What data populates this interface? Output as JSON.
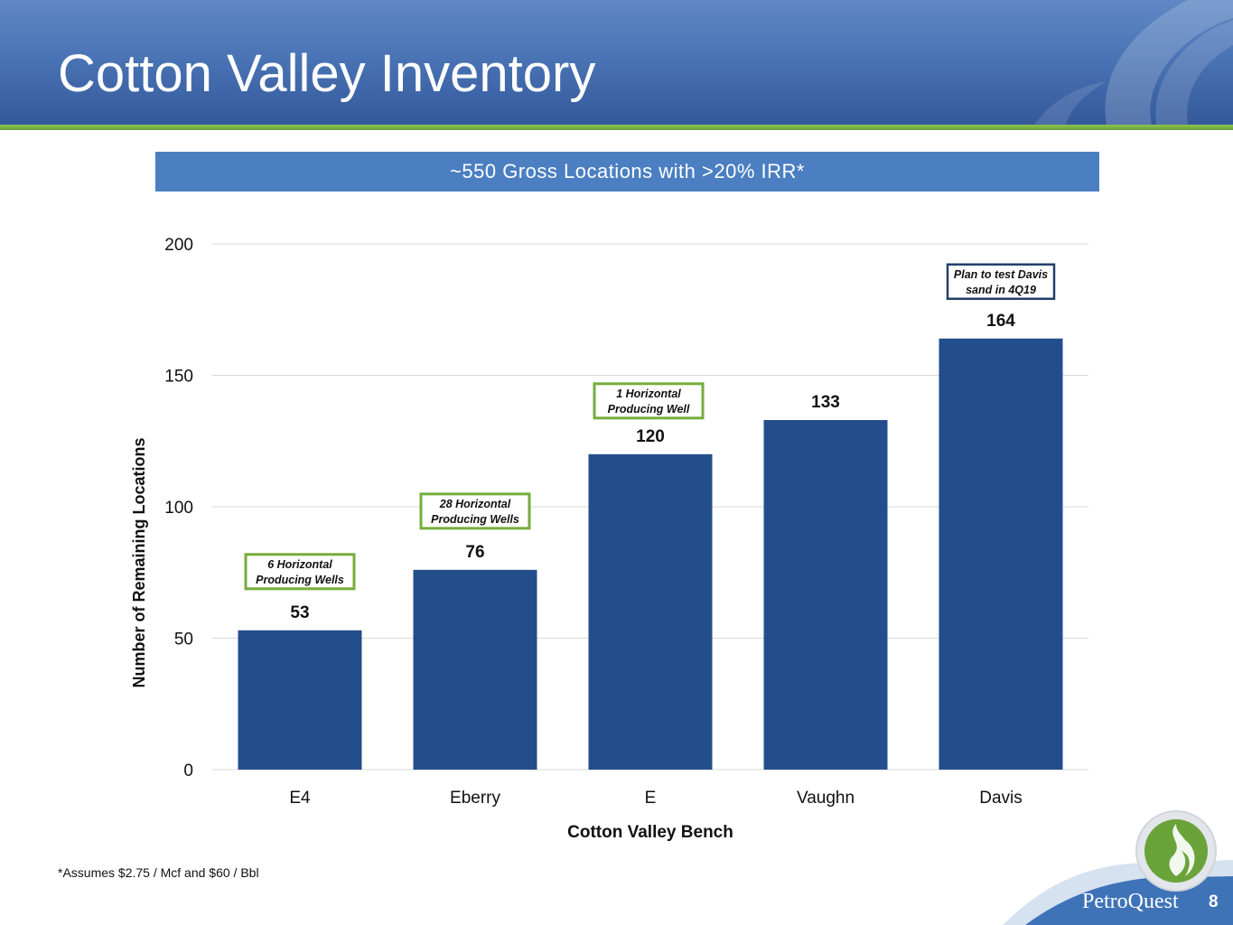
{
  "slide": {
    "title": "Cotton Valley Inventory",
    "banner": "~550 Gross Locations with >20% IRR*",
    "footnote": "*Assumes $2.75 / Mcf and $60 / Bbl",
    "brand": "PetroQuest",
    "page_number": "8"
  },
  "colors": {
    "bar": "#234e8c",
    "callout_green": "#76ad3b",
    "callout_navy": "#243f6b",
    "header": "#4a74b5",
    "accent_green": "#7ab648"
  },
  "chart_data": {
    "type": "bar",
    "title": "~550 Gross Locations with >20% IRR*",
    "xlabel": "Cotton Valley Bench",
    "ylabel": "Number of Remaining Locations",
    "categories": [
      "E4",
      "Eberry",
      "E",
      "Vaughn",
      "Davis"
    ],
    "values": [
      53,
      76,
      120,
      133,
      164
    ],
    "ylim": [
      0,
      200
    ],
    "yticks": [
      0,
      50,
      100,
      150,
      200
    ],
    "grid": true,
    "annotations": [
      {
        "category": "E4",
        "lines": [
          "6 Horizontal",
          "Producing Wells"
        ],
        "style": "green"
      },
      {
        "category": "Eberry",
        "lines": [
          "28 Horizontal",
          "Producing Wells"
        ],
        "style": "green"
      },
      {
        "category": "E",
        "lines": [
          "1 Horizontal",
          "Producing Well"
        ],
        "style": "green"
      },
      {
        "category": "Davis",
        "lines": [
          "Plan to test Davis",
          "sand in 4Q19"
        ],
        "style": "navy"
      }
    ]
  }
}
